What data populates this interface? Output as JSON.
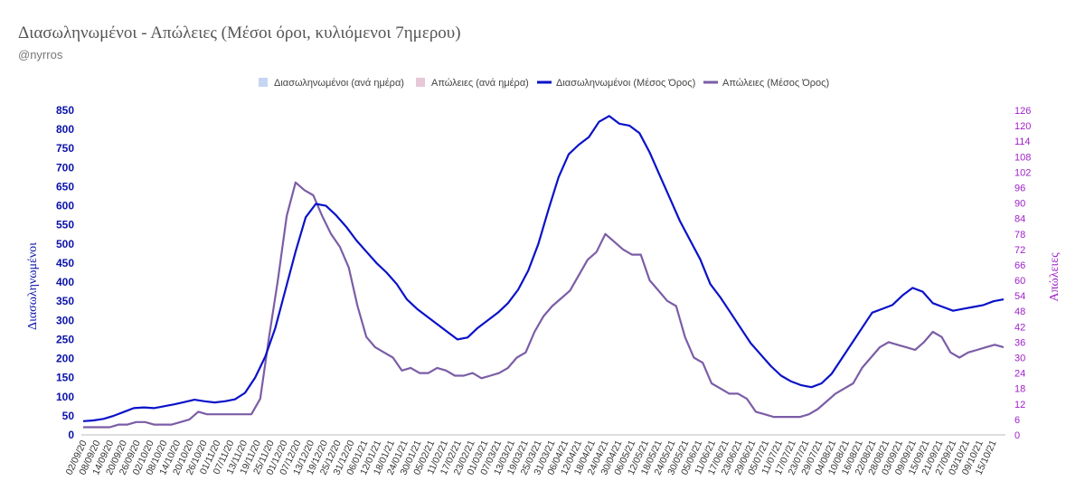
{
  "header": {
    "title": "Διασωληνωμένοι - Απώλειες (Μέσοι όροι, κυλιόμενοι 7ημερου)",
    "subtitle": "@nyrros"
  },
  "colors": {
    "intubated_daily": "#c6d6f2",
    "deaths_daily": "#e6c8d8",
    "intubated_avg": "#0a12c8",
    "deaths_avg": "#7b5da6",
    "left_axis": "#0a12a8",
    "right_axis": "#a020c8"
  },
  "chart_data": {
    "type": "line",
    "legend_position": "top",
    "grid": false,
    "y_left": {
      "label": "Διασωληνωμένοι",
      "ylim": [
        0,
        850
      ],
      "ticks": [
        0,
        50,
        100,
        150,
        200,
        250,
        300,
        350,
        400,
        450,
        500,
        550,
        600,
        650,
        700,
        750,
        800,
        850
      ]
    },
    "y_right": {
      "label": "Απώλειες",
      "ylim": [
        0,
        126
      ],
      "ticks": [
        0,
        6,
        12,
        18,
        24,
        30,
        36,
        42,
        48,
        54,
        60,
        66,
        72,
        78,
        84,
        90,
        96,
        102,
        108,
        114,
        120,
        126
      ]
    },
    "x_tick_labels": [
      "02/09/20",
      "08/09/20",
      "14/09/20",
      "20/09/20",
      "26/09/20",
      "02/10/20",
      "08/10/20",
      "14/10/20",
      "20/10/20",
      "26/10/20",
      "01/11/20",
      "07/11/20",
      "13/11/20",
      "19/11/20",
      "25/11/20",
      "01/12/20",
      "07/12/20",
      "13/12/20",
      "19/12/20",
      "25/12/20",
      "31/12/20",
      "06/01/21",
      "12/01/21",
      "18/01/21",
      "24/01/21",
      "30/01/21",
      "05/02/21",
      "11/02/21",
      "17/02/21",
      "23/02/21",
      "01/03/21",
      "07/03/21",
      "13/03/21",
      "19/03/21",
      "25/03/21",
      "31/03/21",
      "06/04/21",
      "12/04/21",
      "18/04/21",
      "24/04/21",
      "30/04/21",
      "06/05/21",
      "12/05/21",
      "18/05/21",
      "24/05/21",
      "30/05/21",
      "05/06/21",
      "11/06/21",
      "17/06/21",
      "23/06/21",
      "29/06/21",
      "05/07/21",
      "11/07/21",
      "17/07/21",
      "23/07/21",
      "29/07/21",
      "04/08/21",
      "10/08/21",
      "16/08/21",
      "22/08/21",
      "28/08/21",
      "03/09/21",
      "09/09/21",
      "15/09/21",
      "21/09/21",
      "27/09/21",
      "03/10/21",
      "09/10/21",
      "15/10/21"
    ],
    "series": [
      {
        "name": "Διασωληνωμένοι (ανά ημέρα)",
        "type": "bar",
        "axis": "left",
        "values": []
      },
      {
        "name": "Απώλειες (ανά ημέρα)",
        "type": "bar",
        "axis": "right",
        "values": []
      },
      {
        "name": "Διασωληνωμένοι (Μέσος Όρος)",
        "type": "line",
        "axis": "left",
        "values": [
          36,
          38,
          42,
          50,
          60,
          70,
          72,
          70,
          75,
          80,
          86,
          92,
          88,
          85,
          88,
          93,
          110,
          150,
          205,
          280,
          380,
          480,
          570,
          605,
          600,
          575,
          545,
          510,
          480,
          450,
          425,
          395,
          355,
          330,
          310,
          290,
          270,
          250,
          255,
          280,
          300,
          320,
          345,
          380,
          430,
          500,
          590,
          675,
          735,
          760,
          780,
          820,
          835,
          815,
          810,
          790,
          740,
          680,
          620,
          560,
          510,
          460,
          395,
          360,
          320,
          280,
          240,
          210,
          180,
          155,
          140,
          130,
          125,
          135,
          160,
          200,
          240,
          280,
          320,
          330,
          340,
          365,
          385,
          375,
          345,
          335,
          325,
          330,
          335,
          340,
          350,
          355
        ]
      },
      {
        "name": "Απώλειες (Μέσος Όρος)",
        "type": "line",
        "axis": "right",
        "values": [
          3,
          3,
          3,
          3,
          4,
          4,
          5,
          5,
          4,
          4,
          4,
          5,
          6,
          9,
          8,
          8,
          8,
          8,
          8,
          8,
          14,
          38,
          60,
          85,
          98,
          95,
          93,
          85,
          78,
          73,
          65,
          50,
          38,
          34,
          32,
          30,
          25,
          26,
          24,
          24,
          26,
          25,
          23,
          23,
          24,
          22,
          23,
          24,
          26,
          30,
          32,
          40,
          46,
          50,
          53,
          56,
          62,
          68,
          71,
          78,
          75,
          72,
          70,
          70,
          60,
          56,
          52,
          50,
          38,
          30,
          28,
          20,
          18,
          16,
          16,
          14,
          9,
          8,
          7,
          7,
          7,
          7,
          8,
          10,
          13,
          16,
          18,
          20,
          26,
          30,
          34,
          36,
          35,
          34,
          33,
          36,
          40,
          38,
          32,
          30,
          32,
          33,
          34,
          35,
          34
        ]
      }
    ]
  },
  "legend": [
    {
      "label": "Διασωληνωμένοι (ανά ημέρα)",
      "kind": "swatch",
      "color": "#c6d6f2"
    },
    {
      "label": "Απώλειες (ανά ημέρα)",
      "kind": "swatch",
      "color": "#e6c8d8"
    },
    {
      "label": "Διασωληνωμένοι (Μέσος Όρος)",
      "kind": "line",
      "color": "#0a12c8"
    },
    {
      "label": "Απώλειες (Μέσος Όρος)",
      "kind": "line",
      "color": "#7b5da6"
    }
  ]
}
